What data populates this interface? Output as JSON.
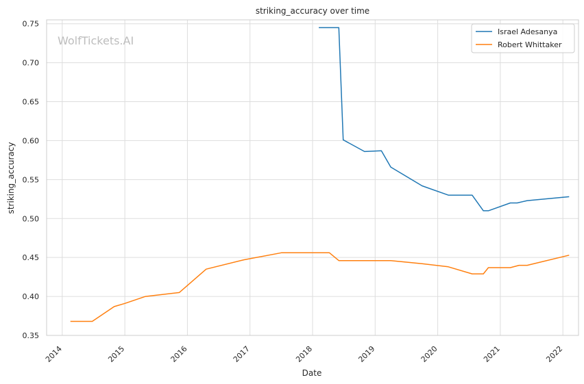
{
  "chart_data": {
    "type": "line",
    "title": "striking_accuracy over time",
    "xlabel": "Date",
    "ylabel": "striking_accuracy",
    "watermark": "WolfTickets.AI",
    "x_ticks": [
      "2014",
      "2015",
      "2016",
      "2017",
      "2018",
      "2019",
      "2020",
      "2021",
      "2022"
    ],
    "y_ticks": [
      "0.35",
      "0.40",
      "0.45",
      "0.50",
      "0.55",
      "0.60",
      "0.65",
      "0.70",
      "0.75"
    ],
    "xlim": [
      2013.75,
      2022.25
    ],
    "ylim": [
      0.35,
      0.755
    ],
    "grid": true,
    "legend_position": "top-right",
    "series": [
      {
        "name": "Israel Adesanya",
        "color": "#1f77b4",
        "x": [
          2018.1,
          2018.42,
          2018.49,
          2018.83,
          2019.1,
          2019.25,
          2019.75,
          2020.17,
          2020.55,
          2020.73,
          2020.81,
          2021.16,
          2021.27,
          2021.43,
          2022.1
        ],
        "y": [
          0.745,
          0.745,
          0.601,
          0.586,
          0.587,
          0.566,
          0.542,
          0.53,
          0.53,
          0.51,
          0.51,
          0.52,
          0.52,
          0.523,
          0.528
        ]
      },
      {
        "name": "Robert Whittaker",
        "color": "#ff7f0e",
        "x": [
          2014.13,
          2014.48,
          2014.83,
          2015.0,
          2015.33,
          2015.87,
          2016.3,
          2016.9,
          2017.5,
          2018.27,
          2018.42,
          2019.25,
          2019.75,
          2020.17,
          2020.55,
          2020.73,
          2020.81,
          2021.16,
          2021.3,
          2021.43,
          2022.1
        ],
        "y": [
          0.368,
          0.368,
          0.387,
          0.391,
          0.4,
          0.405,
          0.435,
          0.447,
          0.456,
          0.456,
          0.446,
          0.446,
          0.442,
          0.438,
          0.429,
          0.429,
          0.437,
          0.437,
          0.44,
          0.44,
          0.453
        ]
      }
    ]
  }
}
